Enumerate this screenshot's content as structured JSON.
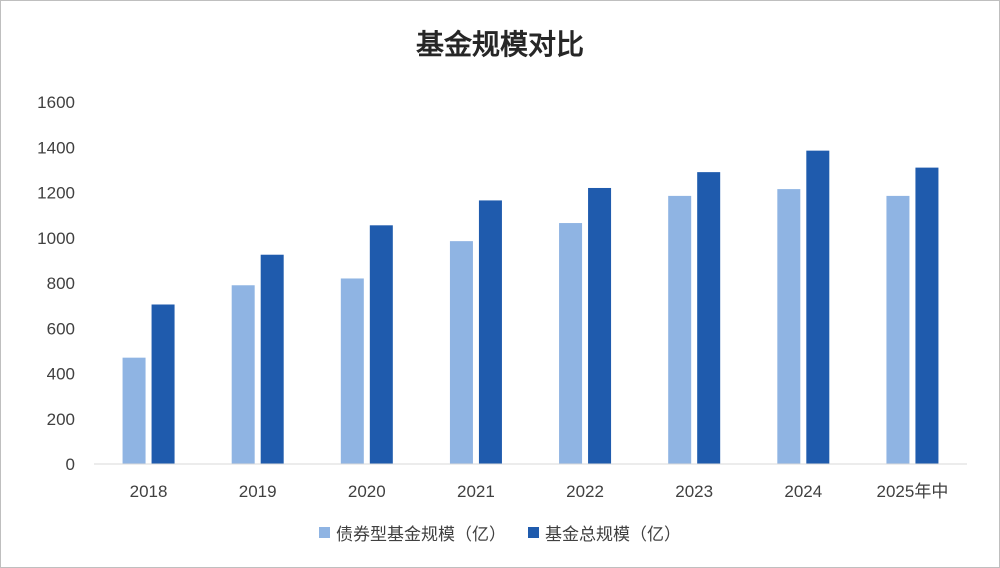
{
  "chart_data": {
    "type": "bar",
    "title": "基金规模对比",
    "categories": [
      "2018",
      "2019",
      "2020",
      "2021",
      "2022",
      "2023",
      "2024",
      "2025年中"
    ],
    "series": [
      {
        "name": "债券型基金规模（亿）",
        "color": "#8fb4e3",
        "values": [
          470,
          790,
          820,
          985,
          1065,
          1185,
          1215,
          1185
        ]
      },
      {
        "name": "基金总规模（亿）",
        "color": "#1f5bad",
        "values": [
          705,
          925,
          1055,
          1165,
          1220,
          1290,
          1385,
          1310
        ]
      }
    ],
    "ylim": [
      0,
      1600
    ],
    "yticks": [
      0,
      200,
      400,
      600,
      800,
      1000,
      1200,
      1400,
      1600
    ],
    "grid": false,
    "legend": "bottom"
  }
}
